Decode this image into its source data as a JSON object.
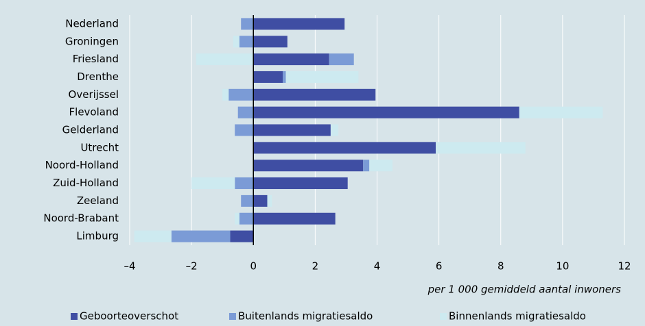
{
  "chart_data": {
    "type": "stacked_barh",
    "xlabel": "per 1 000 gemiddeld aantal inwoners",
    "categories": [
      "Nederland",
      "Groningen",
      "Friesland",
      "Drenthe",
      "Overijssel",
      "Flevoland",
      "Gelderland",
      "Utrecht",
      "Noord-Holland",
      "Zuid-Holland",
      "Zeeland",
      "Noord-Brabant",
      "Limburg"
    ],
    "series": [
      {
        "name": "Geboorteoverschot",
        "color": "#3f4ea3",
        "values": [
          2.95,
          1.1,
          2.45,
          0.95,
          3.95,
          8.6,
          2.5,
          5.9,
          3.55,
          3.05,
          0.45,
          2.65,
          -0.75
        ]
      },
      {
        "name": "Buitenlands migratiesaldo",
        "color": "#7b9bd6",
        "values": [
          -0.4,
          -0.45,
          0.8,
          0.1,
          -0.8,
          -0.5,
          -0.6,
          0,
          0.2,
          -0.6,
          -0.4,
          -0.45,
          -1.9
        ]
      },
      {
        "name": "Binnenlands migratiesaldo",
        "color": "#cdeaf0",
        "values": [
          0,
          -0.2,
          -1.85,
          2.35,
          -0.2,
          2.7,
          0.25,
          2.9,
          0.75,
          -1.4,
          0.15,
          -0.15,
          -1.2
        ]
      }
    ],
    "xlim": [
      -4,
      12
    ],
    "xticks": [
      {
        "value": -4,
        "label": "–4"
      },
      {
        "value": -2,
        "label": "–2"
      },
      0,
      2,
      4,
      6,
      8,
      10,
      12
    ],
    "grid": true,
    "legend": "bottom"
  }
}
